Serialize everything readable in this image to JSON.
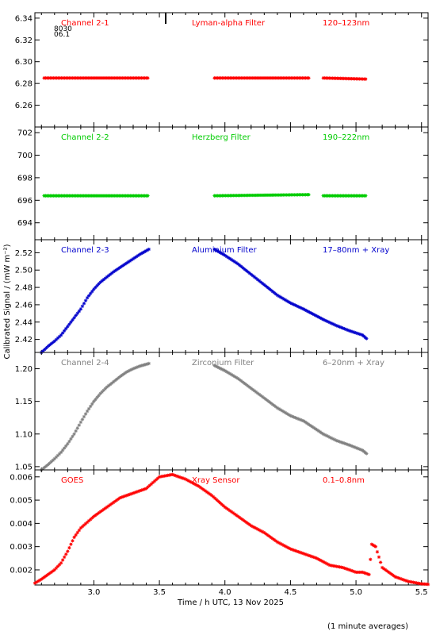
{
  "figure": {
    "ylabel": "Calibrated Signal / (mW m⁻²)",
    "xlabel": "Time / h UTC, 13 Nov 2025",
    "footnote": "(1 minute averages)",
    "corner_annotation": [
      "8030",
      "06.1"
    ]
  },
  "chart_data": [
    {
      "type": "scatter",
      "panel": "Channel 2-1",
      "labels": {
        "channel": "Channel 2-1",
        "filter": "Lyman-alpha Filter",
        "band": "120–123nm"
      },
      "color": "#ff0000",
      "xlim": [
        2.55,
        5.55
      ],
      "ylim": [
        6.24,
        6.345
      ],
      "yticks": [
        6.26,
        6.28,
        6.3,
        6.32,
        6.34
      ],
      "ytick_labels": [
        "6.26",
        "6.28",
        "6.30",
        "6.32",
        "6.34"
      ],
      "segments": [
        {
          "x0": 2.62,
          "x1": 3.42,
          "y0": 6.285,
          "y1": 6.285
        },
        {
          "x0": 3.92,
          "x1": 4.65,
          "y0": 6.285,
          "y1": 6.285
        },
        {
          "x0": 4.75,
          "x1": 5.08,
          "y0": 6.285,
          "y1": 6.284
        }
      ]
    },
    {
      "type": "scatter",
      "panel": "Channel 2-2",
      "labels": {
        "channel": "Channel 2-2",
        "filter": "Herzberg Filter",
        "band": "190–222nm"
      },
      "color": "#00cc00",
      "xlim": [
        2.55,
        5.55
      ],
      "ylim": [
        692.5,
        702.5
      ],
      "yticks": [
        694,
        696,
        698,
        700,
        702
      ],
      "ytick_labels": [
        "694",
        "696",
        "698",
        "700",
        "702"
      ],
      "segments": [
        {
          "x0": 2.62,
          "x1": 3.42,
          "y0": 696.4,
          "y1": 696.4
        },
        {
          "x0": 3.92,
          "x1": 4.65,
          "y0": 696.4,
          "y1": 696.5
        },
        {
          "x0": 4.75,
          "x1": 5.08,
          "y0": 696.4,
          "y1": 696.4
        }
      ]
    },
    {
      "type": "scatter",
      "panel": "Channel 2-3",
      "labels": {
        "channel": "Channel 2-3",
        "filter": "Aluminium Filter",
        "band": "17–80nm + Xray"
      },
      "color": "#0000cc",
      "xlim": [
        2.55,
        5.55
      ],
      "ylim": [
        2.405,
        2.535
      ],
      "yticks": [
        2.42,
        2.44,
        2.46,
        2.48,
        2.5,
        2.52
      ],
      "ytick_labels": [
        "2.42",
        "2.44",
        "2.46",
        "2.48",
        "2.50",
        "2.52"
      ],
      "points": [
        [
          2.6,
          2.405
        ],
        [
          2.65,
          2.412
        ],
        [
          2.7,
          2.418
        ],
        [
          2.75,
          2.425
        ],
        [
          2.8,
          2.435
        ],
        [
          2.85,
          2.445
        ],
        [
          2.9,
          2.455
        ],
        [
          2.95,
          2.468
        ],
        [
          3.0,
          2.478
        ],
        [
          3.05,
          2.486
        ],
        [
          3.1,
          2.492
        ],
        [
          3.15,
          2.498
        ],
        [
          3.2,
          2.503
        ],
        [
          3.25,
          2.508
        ],
        [
          3.3,
          2.513
        ],
        [
          3.35,
          2.518
        ],
        [
          3.42,
          2.524
        ],
        [
          3.92,
          2.524
        ],
        [
          4.0,
          2.517
        ],
        [
          4.1,
          2.507
        ],
        [
          4.2,
          2.495
        ],
        [
          4.3,
          2.483
        ],
        [
          4.4,
          2.471
        ],
        [
          4.5,
          2.462
        ],
        [
          4.6,
          2.455
        ],
        [
          4.75,
          2.443
        ],
        [
          4.85,
          2.436
        ],
        [
          4.95,
          2.43
        ],
        [
          5.05,
          2.425
        ],
        [
          5.08,
          2.421
        ]
      ]
    },
    {
      "type": "scatter",
      "panel": "Channel 2-4",
      "labels": {
        "channel": "Channel 2-4",
        "filter": "Zirconium Filter",
        "band": "6–20nm + Xray"
      },
      "color": "#808080",
      "xlim": [
        2.55,
        5.55
      ],
      "ylim": [
        1.045,
        1.225
      ],
      "yticks": [
        1.05,
        1.1,
        1.15,
        1.2
      ],
      "ytick_labels": [
        "1.05",
        "1.10",
        "1.15",
        "1.20"
      ],
      "points": [
        [
          2.6,
          1.045
        ],
        [
          2.65,
          1.053
        ],
        [
          2.7,
          1.062
        ],
        [
          2.75,
          1.072
        ],
        [
          2.8,
          1.085
        ],
        [
          2.85,
          1.1
        ],
        [
          2.9,
          1.118
        ],
        [
          2.95,
          1.135
        ],
        [
          3.0,
          1.15
        ],
        [
          3.05,
          1.162
        ],
        [
          3.1,
          1.172
        ],
        [
          3.15,
          1.18
        ],
        [
          3.2,
          1.188
        ],
        [
          3.25,
          1.195
        ],
        [
          3.3,
          1.2
        ],
        [
          3.35,
          1.204
        ],
        [
          3.42,
          1.208
        ],
        [
          3.92,
          1.205
        ],
        [
          4.0,
          1.197
        ],
        [
          4.1,
          1.185
        ],
        [
          4.2,
          1.17
        ],
        [
          4.3,
          1.155
        ],
        [
          4.4,
          1.14
        ],
        [
          4.5,
          1.128
        ],
        [
          4.6,
          1.12
        ],
        [
          4.75,
          1.1
        ],
        [
          4.85,
          1.09
        ],
        [
          4.95,
          1.083
        ],
        [
          5.05,
          1.075
        ],
        [
          5.08,
          1.07
        ]
      ]
    },
    {
      "type": "scatter",
      "panel": "GOES",
      "labels": {
        "channel": "GOES",
        "filter": "Xray Sensor",
        "band": "0.1–0.8nm"
      },
      "color": "#ff0000",
      "xlim": [
        2.55,
        5.55
      ],
      "ylim": [
        0.00135,
        0.0063
      ],
      "yticks": [
        0.002,
        0.003,
        0.004,
        0.005,
        0.006
      ],
      "ytick_labels": [
        "0.002",
        "0.003",
        "0.004",
        "0.005",
        "0.006"
      ],
      "xticks": [
        3.0,
        3.5,
        4.0,
        4.5,
        5.0,
        5.5
      ],
      "xtick_labels": [
        "3.0",
        "3.5",
        "4.0",
        "4.5",
        "5.0",
        "5.5"
      ],
      "points": [
        [
          2.55,
          0.00143
        ],
        [
          2.6,
          0.0016
        ],
        [
          2.65,
          0.0018
        ],
        [
          2.7,
          0.002
        ],
        [
          2.75,
          0.0023
        ],
        [
          2.8,
          0.0028
        ],
        [
          2.85,
          0.0034
        ],
        [
          2.9,
          0.0038
        ],
        [
          3.0,
          0.0043
        ],
        [
          3.1,
          0.0047
        ],
        [
          3.2,
          0.0051
        ],
        [
          3.3,
          0.0053
        ],
        [
          3.4,
          0.0055
        ],
        [
          3.5,
          0.006
        ],
        [
          3.6,
          0.0061
        ],
        [
          3.7,
          0.0059
        ],
        [
          3.8,
          0.0056
        ],
        [
          3.9,
          0.0052
        ],
        [
          4.0,
          0.0047
        ],
        [
          4.1,
          0.0043
        ],
        [
          4.2,
          0.0039
        ],
        [
          4.3,
          0.0036
        ],
        [
          4.4,
          0.0032
        ],
        [
          4.5,
          0.0029
        ],
        [
          4.6,
          0.0027
        ],
        [
          4.7,
          0.0025
        ],
        [
          4.8,
          0.0022
        ],
        [
          4.9,
          0.0021
        ],
        [
          5.0,
          0.0019
        ],
        [
          5.05,
          0.0019
        ],
        [
          5.1,
          0.0018
        ],
        [
          5.12,
          0.0031
        ],
        [
          5.15,
          0.003
        ],
        [
          5.2,
          0.0021
        ],
        [
          5.3,
          0.0017
        ],
        [
          5.4,
          0.0015
        ],
        [
          5.5,
          0.0014
        ],
        [
          5.55,
          0.00138
        ]
      ]
    }
  ]
}
